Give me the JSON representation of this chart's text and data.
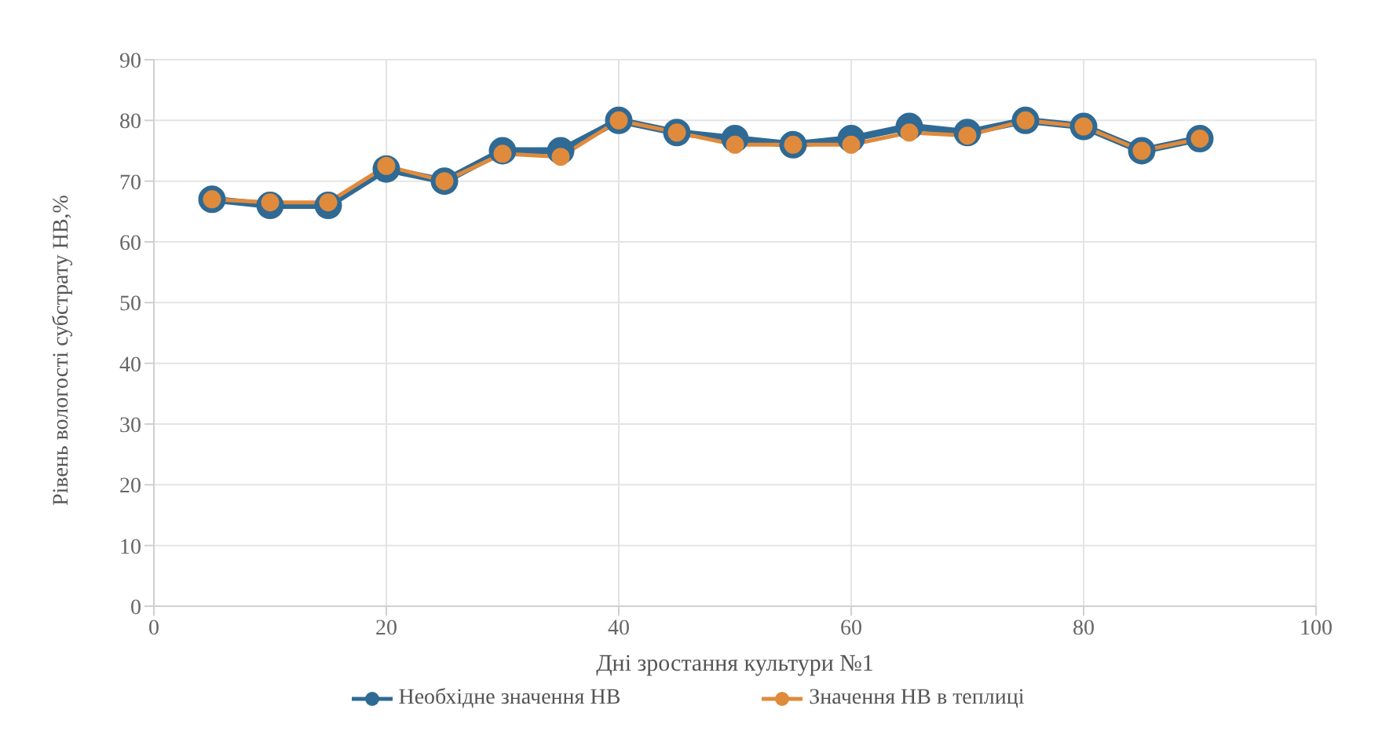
{
  "chart_data": {
    "type": "line",
    "xlabel": "Дні зростання культури №1",
    "ylabel": "Рівень вологості субстрату НВ,%",
    "x": [
      5,
      10,
      15,
      20,
      25,
      30,
      35,
      40,
      45,
      50,
      55,
      60,
      65,
      70,
      75,
      80,
      85,
      90
    ],
    "series": [
      {
        "name": "Необхідне значення НВ",
        "color": "#2f6a94",
        "values": [
          67,
          66,
          66,
          72,
          70,
          75,
          75,
          80,
          78,
          77,
          76,
          77,
          79,
          78,
          80,
          79,
          75,
          77
        ]
      },
      {
        "name": "Значення НВ в теплиці",
        "color": "#e08a3c",
        "values": [
          67,
          66.5,
          66.5,
          72.5,
          70,
          74.5,
          74,
          80,
          78,
          76,
          76,
          76,
          78,
          77.5,
          80,
          79,
          75,
          77
        ]
      }
    ],
    "xlim": [
      0,
      100
    ],
    "xticks": [
      0,
      20,
      40,
      60,
      80,
      100
    ],
    "ylim": [
      0,
      90
    ],
    "yticks": [
      0,
      10,
      20,
      30,
      40,
      50,
      60,
      70,
      80,
      90
    ],
    "grid": true,
    "legend": "bottom",
    "marker": "circle",
    "line_style": "solid"
  }
}
